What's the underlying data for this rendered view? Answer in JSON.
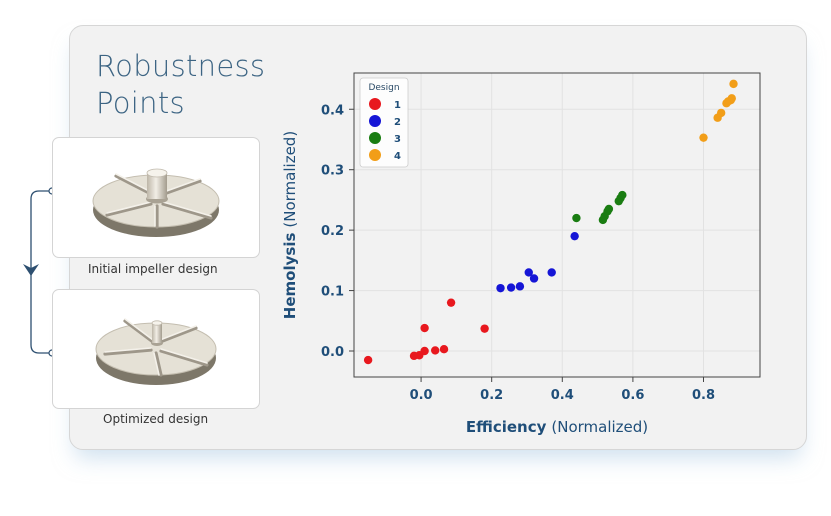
{
  "title": "Robustness\nPoints",
  "designs": [
    {
      "caption": "Initial impeller design"
    },
    {
      "caption": "Optimized design"
    }
  ],
  "chart_data": {
    "type": "scatter",
    "xlabel_bold": "Efficiency",
    "xlabel_suffix": "(Normalized)",
    "ylabel_bold": "Hemolysis",
    "ylabel_suffix": "(Normalized)",
    "xlim": [
      -0.19,
      0.96
    ],
    "ylim": [
      -0.043,
      0.46
    ],
    "xticks": [
      0.0,
      0.2,
      0.4,
      0.6,
      0.8
    ],
    "yticks": [
      0.0,
      0.1,
      0.2,
      0.3,
      0.4
    ],
    "grid": true,
    "legend": {
      "title": "Design",
      "placement": "top-left"
    },
    "series": [
      {
        "name": "1",
        "color": "#e8181e",
        "points": [
          [
            -0.15,
            -0.015
          ],
          [
            -0.02,
            -0.008
          ],
          [
            -0.005,
            -0.007
          ],
          [
            0.01,
            0.0
          ],
          [
            0.04,
            0.001
          ],
          [
            0.065,
            0.003
          ],
          [
            0.01,
            0.038
          ],
          [
            0.085,
            0.08
          ],
          [
            0.18,
            0.037
          ]
        ]
      },
      {
        "name": "2",
        "color": "#1515d6",
        "points": [
          [
            0.225,
            0.104
          ],
          [
            0.255,
            0.105
          ],
          [
            0.28,
            0.107
          ],
          [
            0.305,
            0.13
          ],
          [
            0.32,
            0.12
          ],
          [
            0.37,
            0.13
          ],
          [
            0.435,
            0.19
          ]
        ]
      },
      {
        "name": "3",
        "color": "#1a7d12",
        "points": [
          [
            0.44,
            0.22
          ],
          [
            0.515,
            0.217
          ],
          [
            0.52,
            0.223
          ],
          [
            0.528,
            0.231
          ],
          [
            0.532,
            0.235
          ],
          [
            0.56,
            0.248
          ],
          [
            0.565,
            0.253
          ],
          [
            0.57,
            0.258
          ]
        ]
      },
      {
        "name": "4",
        "color": "#f29e18",
        "points": [
          [
            0.8,
            0.353
          ],
          [
            0.84,
            0.386
          ],
          [
            0.85,
            0.394
          ],
          [
            0.865,
            0.41
          ],
          [
            0.87,
            0.413
          ],
          [
            0.877,
            0.415
          ],
          [
            0.88,
            0.418
          ],
          [
            0.885,
            0.442
          ]
        ]
      }
    ]
  }
}
